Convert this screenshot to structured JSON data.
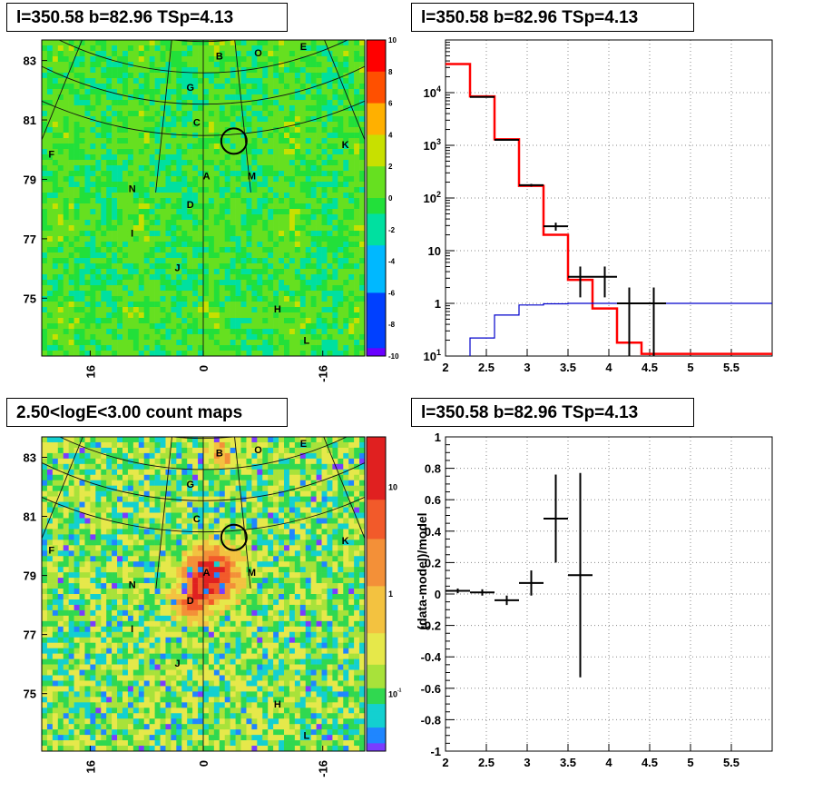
{
  "panels": {
    "tl_title": "l=350.58 b=82.96 TSp=4.13",
    "tr_title": "l=350.58 b=82.96 TSp=4.13",
    "bl_title": "2.50<logE<3.00 count maps",
    "br_title": "l=350.58 b=82.96 TSp=4.13"
  },
  "colors": {
    "data": "#000000",
    "model": "#ff0000",
    "signal": "#0000cc",
    "residual_map": "#22dd33",
    "count_map": "#e8e060"
  },
  "chart_data": [
    {
      "type": "heatmap",
      "name_hint": "residual significance map",
      "colorbar": {
        "min": -10,
        "max": 10,
        "ticks": [
          "10",
          "8",
          "6",
          "4",
          "2",
          "0",
          "-2",
          "-4",
          "-6",
          "-8",
          "-10"
        ]
      },
      "y_ticks": [
        "83",
        "81",
        "79",
        "77",
        "75"
      ],
      "x_ticks": [
        "16",
        "0",
        "-16"
      ],
      "sources": [
        "B",
        "O",
        "E",
        "G",
        "C",
        "F",
        "K",
        "A",
        "M",
        "N",
        "D",
        "I",
        "J",
        "H",
        "L"
      ],
      "markers": [
        {
          "type": "circle",
          "near": "C"
        }
      ]
    },
    {
      "type": "line",
      "y_scale": "log",
      "xlim": [
        2,
        6
      ],
      "ylim": [
        0.1,
        100000
      ],
      "x_ticks": [
        "2",
        "2.5",
        "3",
        "3.5",
        "4",
        "4.5",
        "5",
        "5.5"
      ],
      "y_ticks": [
        "10^1",
        "1",
        "10",
        "10^2",
        "10^3",
        "10^4"
      ],
      "grid": true,
      "series": [
        {
          "role": "model",
          "style": "step",
          "color": "#ff0000",
          "bins": [
            [
              2.0,
              2.3,
              35000
            ],
            [
              2.3,
              2.6,
              8500
            ],
            [
              2.6,
              2.9,
              1300
            ],
            [
              2.9,
              3.2,
              170
            ],
            [
              3.2,
              3.5,
              20
            ],
            [
              3.5,
              3.8,
              2.8
            ],
            [
              3.8,
              4.1,
              0.8
            ],
            [
              4.1,
              4.4,
              0.18
            ],
            [
              4.4,
              6.0,
              0.11
            ]
          ]
        },
        {
          "role": "signal",
          "style": "step",
          "color": "#0000cc",
          "bins": [
            [
              2.3,
              2.6,
              0.22
            ],
            [
              2.6,
              2.9,
              0.6
            ],
            [
              2.9,
              3.2,
              0.93
            ],
            [
              3.2,
              3.5,
              0.98
            ],
            [
              3.5,
              6.0,
              1.0
            ]
          ]
        },
        {
          "role": "data",
          "style": "errorbars",
          "color": "#000000",
          "points": [
            {
              "x": 2.45,
              "xerr": 0.15,
              "y": 8300,
              "ylo": 8100,
              "yhi": 8500
            },
            {
              "x": 2.75,
              "xerr": 0.15,
              "y": 1270,
              "ylo": 1230,
              "yhi": 1310
            },
            {
              "x": 3.05,
              "xerr": 0.15,
              "y": 175,
              "ylo": 165,
              "yhi": 185
            },
            {
              "x": 3.35,
              "xerr": 0.15,
              "y": 29,
              "ylo": 24,
              "yhi": 34
            },
            {
              "x": 3.65,
              "xerr": 0.15,
              "y": 3.2,
              "ylo": 1.3,
              "yhi": 5.0
            },
            {
              "x": 3.95,
              "xerr": 0.15,
              "y": 3.2,
              "ylo": 1.3,
              "yhi": 5.0
            },
            {
              "x": 4.25,
              "xerr": 0.15,
              "y": 1.0,
              "ylo": 0.1,
              "yhi": 2.0
            },
            {
              "x": 4.55,
              "xerr": 0.15,
              "y": 1.0,
              "ylo": 0.1,
              "yhi": 2.0
            }
          ]
        }
      ]
    },
    {
      "type": "heatmap",
      "name_hint": "count map",
      "colorbar": {
        "scale": "log",
        "ticks": [
          "10",
          "1",
          "10^-1"
        ]
      },
      "y_ticks": [
        "83",
        "81",
        "79",
        "77",
        "75"
      ],
      "x_ticks": [
        "16",
        "0",
        "-16"
      ],
      "sources": [
        "B",
        "O",
        "E",
        "G",
        "C",
        "F",
        "K",
        "A",
        "M",
        "N",
        "D",
        "I",
        "J",
        "H",
        "L"
      ],
      "markers": [
        {
          "type": "circle",
          "near": "C"
        }
      ]
    },
    {
      "type": "scatter",
      "ylabel": "(data-model)/model",
      "xlim": [
        2,
        6
      ],
      "ylim": [
        -1,
        1
      ],
      "x_ticks": [
        "2",
        "2.5",
        "3",
        "3.5",
        "4",
        "4.5",
        "5",
        "5.5"
      ],
      "y_ticks": [
        "1",
        "0.8",
        "0.6",
        "0.4",
        "0.2",
        "0",
        "-0.2",
        "-0.4",
        "-0.6",
        "-0.8",
        "-1"
      ],
      "grid": true,
      "points": [
        {
          "x": 2.15,
          "xerr": 0.15,
          "y": 0.02,
          "yerr": 0.015
        },
        {
          "x": 2.45,
          "xerr": 0.15,
          "y": 0.01,
          "yerr": 0.02
        },
        {
          "x": 2.75,
          "xerr": 0.15,
          "y": -0.04,
          "yerr": 0.03
        },
        {
          "x": 3.05,
          "xerr": 0.15,
          "y": 0.07,
          "yerr": 0.08
        },
        {
          "x": 3.35,
          "xerr": 0.15,
          "y": 0.48,
          "ylo": 0.2,
          "yhi": 0.76
        },
        {
          "x": 3.65,
          "xerr": 0.15,
          "y": 0.12,
          "ylo": -0.53,
          "yhi": 0.77
        }
      ]
    }
  ]
}
